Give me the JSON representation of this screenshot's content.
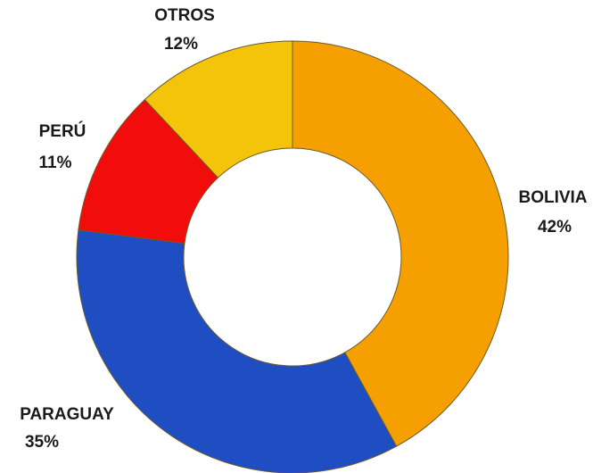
{
  "chart_data": {
    "type": "donut",
    "categories": [
      "BOLIVIA",
      "PARAGUAY",
      "PERÚ",
      "OTROS"
    ],
    "values": [
      42,
      35,
      11,
      12
    ],
    "value_labels": [
      "42%",
      "35%",
      "11%",
      "12%"
    ],
    "colors": [
      "#f5a000",
      "#1f4ec2",
      "#f20c0c",
      "#f3c40a"
    ]
  }
}
